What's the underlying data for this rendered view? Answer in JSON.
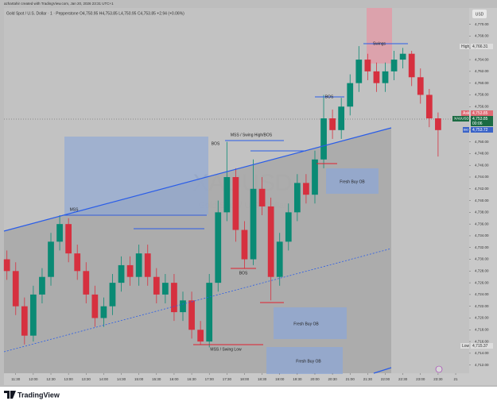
{
  "header": {
    "credit": "azhartahir created with TradingView.com, Jan 20, 2026 23:31 UTC+1",
    "brand": "TradingView"
  },
  "chart_data": {
    "type": "candlestick",
    "title": "Gold Spot / U.S. Dollar · 1 · Pepperstone  O4,750.95  H4,753.85  L4,750.95  C4,753.85  +2.94 (+0.06%)",
    "watermark": [
      "XAUUSD",
      "Gold Spot / U.S. Dollar"
    ],
    "currency": "USD",
    "x": [
      675,
      690,
      705,
      720,
      735,
      750,
      765,
      780,
      795,
      810,
      825,
      840,
      855,
      870,
      885,
      900,
      915,
      930,
      945,
      960,
      975,
      990,
      1005,
      1020,
      1035,
      1050,
      1065,
      1080,
      1095,
      1110,
      1125,
      1140,
      1155,
      1170,
      1185,
      1200,
      1215,
      1230,
      1245,
      1260,
      1275,
      1290,
      1305,
      1320,
      1335,
      1350,
      1365,
      1380,
      1395,
      1410
    ],
    "open": [
      4730,
      4728,
      4722,
      4717,
      4724,
      4727,
      4733,
      4736,
      4731,
      4728,
      4724,
      4720,
      4722,
      4726,
      4729,
      4727,
      4731,
      4727,
      4724,
      4726,
      4721,
      4723,
      4718,
      4716,
      4726,
      4738,
      4744,
      4735,
      4730,
      4742,
      4739,
      4727,
      4733,
      4738,
      4743,
      4741,
      4747,
      4754,
      4752,
      4756,
      4760,
      4764,
      4762,
      4760,
      4762,
      4764,
      4765,
      4761,
      4758,
      4754
    ],
    "high": [
      4731.5,
      4729.5,
      4723.5,
      4725.5,
      4728.5,
      4734.5,
      4737.5,
      4737,
      4732.5,
      4729.5,
      4725.5,
      4723.5,
      4727.5,
      4730.5,
      4730.5,
      4732.5,
      4732.5,
      4728.5,
      4727.5,
      4727.5,
      4724.5,
      4724.5,
      4719.5,
      4727.5,
      4740,
      4750,
      4745.5,
      4736.5,
      4747,
      4744,
      4740.5,
      4734.5,
      4739.5,
      4744.5,
      4744.5,
      4748.5,
      4758,
      4755.5,
      4757.5,
      4761.5,
      4766.3,
      4765,
      4763.5,
      4763.5,
      4765.5,
      4766,
      4765.5,
      4762.5,
      4759,
      4755
    ],
    "low": [
      4726.5,
      4720.5,
      4715.5,
      4716,
      4722.5,
      4725.5,
      4731.5,
      4729.5,
      4726.5,
      4722.5,
      4718.5,
      4718.5,
      4720.5,
      4724.5,
      4725.5,
      4725.5,
      4725.5,
      4722.5,
      4722.5,
      4719.5,
      4719.5,
      4716.5,
      4715.4,
      4715,
      4724.5,
      4736.5,
      4733,
      4728.5,
      4729,
      4737.5,
      4723,
      4725.5,
      4731.5,
      4736.5,
      4739.5,
      4739.5,
      4745.5,
      4750.5,
      4750.5,
      4754.5,
      4758.5,
      4760.5,
      4758.5,
      4758.5,
      4760.5,
      4762.5,
      4759.5,
      4756.5,
      4752.5,
      4747.5
    ],
    "close": [
      4728,
      4722,
      4717,
      4724,
      4727,
      4733,
      4736,
      4731,
      4728,
      4724,
      4720,
      4722,
      4726,
      4729,
      4727,
      4731,
      4727,
      4724,
      4726,
      4721,
      4723,
      4718,
      4716,
      4726,
      4738,
      4744,
      4735,
      4730,
      4742,
      4739,
      4727,
      4733,
      4738,
      4743,
      4741,
      4747,
      4754,
      4752,
      4756,
      4760,
      4764,
      4762,
      4760,
      4762,
      4764,
      4765,
      4761,
      4758,
      4754,
      4752
    ],
    "up_color": "#0a8a74",
    "down_color": "#d6303f",
    "xlim": [
      670,
      1463
    ],
    "xticks": [
      {
        "value": 690,
        "label": "11:30"
      },
      {
        "value": 720,
        "label": "12:00"
      },
      {
        "value": 750,
        "label": "12:30"
      },
      {
        "value": 780,
        "label": "13:00"
      },
      {
        "value": 810,
        "label": "13:30"
      },
      {
        "value": 840,
        "label": "14:00"
      },
      {
        "value": 870,
        "label": "14:30"
      },
      {
        "value": 900,
        "label": "15:00"
      },
      {
        "value": 930,
        "label": "15:30"
      },
      {
        "value": 960,
        "label": "16:00"
      },
      {
        "value": 990,
        "label": "16:30"
      },
      {
        "value": 1020,
        "label": "17:00"
      },
      {
        "value": 1050,
        "label": "17:30"
      },
      {
        "value": 1080,
        "label": "18:00"
      },
      {
        "value": 1110,
        "label": "18:30"
      },
      {
        "value": 1140,
        "label": "19:00"
      },
      {
        "value": 1170,
        "label": "19:30"
      },
      {
        "value": 1200,
        "label": "20:00"
      },
      {
        "value": 1230,
        "label": "20:30"
      },
      {
        "value": 1260,
        "label": "21:00"
      },
      {
        "value": 1290,
        "label": "21:30"
      },
      {
        "value": 1320,
        "label": "22:00"
      },
      {
        "value": 1350,
        "label": "22:30"
      },
      {
        "value": 1380,
        "label": "23:00"
      },
      {
        "value": 1410,
        "label": "23:30"
      },
      {
        "value": 1440,
        "label": "21"
      }
    ],
    "ylim": [
      4710.6,
      4772.8
    ],
    "yticks": [
      {
        "value": 4712,
        "label": "4,712.00"
      },
      {
        "value": 4714,
        "label": "4,714.00"
      },
      {
        "value": 4716,
        "label": "4,716.00"
      },
      {
        "value": 4718,
        "label": "4,718.00"
      },
      {
        "value": 4720,
        "label": "4,720.00"
      },
      {
        "value": 4722,
        "label": "4,722.00"
      },
      {
        "value": 4724,
        "label": "4,724.00"
      },
      {
        "value": 4726,
        "label": "4,726.00"
      },
      {
        "value": 4728,
        "label": "4,728.00"
      },
      {
        "value": 4730,
        "label": "4,730.00"
      },
      {
        "value": 4732,
        "label": "4,732.00"
      },
      {
        "value": 4734,
        "label": "4,734.00"
      },
      {
        "value": 4736,
        "label": "4,736.00"
      },
      {
        "value": 4738,
        "label": "4,738.00"
      },
      {
        "value": 4740,
        "label": "4,740.00"
      },
      {
        "value": 4742,
        "label": "4,742.00"
      },
      {
        "value": 4744,
        "label": "4,744.00"
      },
      {
        "value": 4746,
        "label": "4,746.00"
      },
      {
        "value": 4748,
        "label": "4,748.00"
      },
      {
        "value": 4750,
        "label": "4,750.00"
      },
      {
        "value": 4752,
        "label": "4,752.00"
      },
      {
        "value": 4754,
        "label": "4,754.00"
      },
      {
        "value": 4756,
        "label": "4,756.00"
      },
      {
        "value": 4758,
        "label": "4,758.00"
      },
      {
        "value": 4760,
        "label": "4,760.00"
      },
      {
        "value": 4762,
        "label": "4,762.00"
      },
      {
        "value": 4764,
        "label": "4,764.00"
      },
      {
        "value": 4766,
        "label": "4,766.00"
      },
      {
        "value": 4768,
        "label": "4,768.00"
      },
      {
        "value": 4770,
        "label": "4,770.00"
      }
    ],
    "annotations": {
      "swings": "Swings",
      "bos_top": "BOS",
      "mss_high": "MSS / Swing High/BOS",
      "bos_mid": "BOS",
      "mss_left": "MSS",
      "ob1": "Fresh Buy OB",
      "ob2": "Fresh Buy OB",
      "ob3": "Fresh Buy OB",
      "mss_low": "MSS / Swing Low"
    },
    "price_tags": {
      "high_label": "High",
      "high": "4,766.31",
      "ask_label": "Ask",
      "ask": "4,753.85",
      "symbol": "XAUUSD",
      "last": "4,753.85",
      "timer": "00:06",
      "bid_label": "Bid",
      "bid": "4,753.72",
      "low_label": "Low",
      "low": "4,715.37"
    }
  }
}
